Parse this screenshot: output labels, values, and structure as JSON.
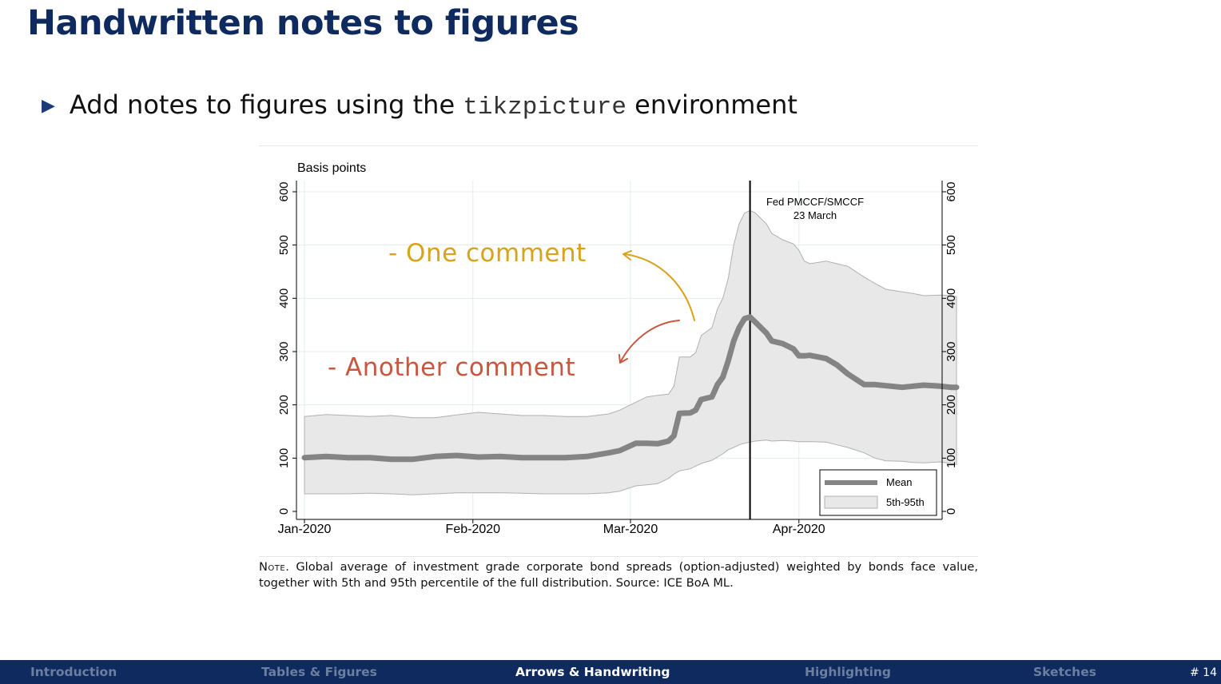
{
  "slide": {
    "title": "Handwritten notes to figures",
    "bullet_prefix": "Add notes to figures using the",
    "bullet_code": "tikzpicture",
    "bullet_suffix": "environment"
  },
  "figure": {
    "ytitle": "Basis points",
    "annotation_line1": "Fed PMCCF/SMCCF",
    "annotation_line2": "23 March",
    "handwritten_1": "- One comment",
    "handwritten_2": "- Another comment",
    "colors": {
      "mean": "#848484",
      "band_fill": "#e8e8e8",
      "band_edge": "#b0b0b0",
      "note_1": "#d6a31a",
      "note_2": "#c8573f",
      "vline": "#000000"
    }
  },
  "chart_data": {
    "type": "area",
    "ylabel": "Basis points",
    "ylim": [
      0,
      600
    ],
    "yticks": [
      0,
      100,
      200,
      300,
      400,
      500,
      600
    ],
    "xticks": [
      {
        "label": "Jan-2020",
        "day": 1
      },
      {
        "label": "Feb-2020",
        "day": 32
      },
      {
        "label": "Mar-2020",
        "day": 61
      },
      {
        "label": "Apr-2020",
        "day": 92
      }
    ],
    "vline": {
      "day": 83,
      "label": "Fed PMCCF/SMCCF 23 March"
    },
    "legend": [
      {
        "name": "Mean",
        "style": "line"
      },
      {
        "name": "5th-95th",
        "style": "band"
      }
    ],
    "legend_position": "bottom-right",
    "series": [
      {
        "name": "Mean",
        "x": [
          "2020-01-01",
          "2020-01-05",
          "2020-01-09",
          "2020-01-13",
          "2020-01-17",
          "2020-01-21",
          "2020-01-25",
          "2020-01-29",
          "2020-02-02",
          "2020-02-06",
          "2020-02-10",
          "2020-02-14",
          "2020-02-18",
          "2020-02-22",
          "2020-02-26",
          "2020-02-28",
          "2020-03-02",
          "2020-03-04",
          "2020-03-06",
          "2020-03-08",
          "2020-03-09",
          "2020-03-10",
          "2020-03-12",
          "2020-03-13",
          "2020-03-14",
          "2020-03-16",
          "2020-03-17",
          "2020-03-18",
          "2020-03-19",
          "2020-03-20",
          "2020-03-21",
          "2020-03-22",
          "2020-03-23",
          "2020-03-24",
          "2020-03-26",
          "2020-03-27",
          "2020-03-29",
          "2020-03-31",
          "2020-04-01",
          "2020-04-02",
          "2020-04-03",
          "2020-04-06",
          "2020-04-08",
          "2020-04-10",
          "2020-04-13",
          "2020-04-15",
          "2020-04-17",
          "2020-04-20",
          "2020-04-22",
          "2020-04-24",
          "2020-04-27",
          "2020-04-29",
          "2020-04-30"
        ],
        "values": [
          101,
          103,
          101,
          101,
          98,
          98,
          103,
          105,
          102,
          103,
          101,
          101,
          101,
          103,
          110,
          114,
          128,
          128,
          127,
          132,
          142,
          184,
          185,
          190,
          210,
          215,
          238,
          252,
          283,
          320,
          345,
          362,
          365,
          355,
          335,
          320,
          315,
          305,
          292,
          292,
          293,
          287,
          275,
          258,
          238,
          238,
          236,
          233,
          235,
          237,
          235,
          233,
          233
        ]
      },
      {
        "name": "5th-95th",
        "x": [
          "2020-01-01",
          "2020-01-05",
          "2020-01-09",
          "2020-01-13",
          "2020-01-17",
          "2020-01-21",
          "2020-01-25",
          "2020-01-29",
          "2020-02-02",
          "2020-02-06",
          "2020-02-10",
          "2020-02-14",
          "2020-02-18",
          "2020-02-22",
          "2020-02-26",
          "2020-02-28",
          "2020-03-02",
          "2020-03-04",
          "2020-03-06",
          "2020-03-08",
          "2020-03-09",
          "2020-03-10",
          "2020-03-12",
          "2020-03-13",
          "2020-03-14",
          "2020-03-16",
          "2020-03-17",
          "2020-03-18",
          "2020-03-19",
          "2020-03-20",
          "2020-03-21",
          "2020-03-22",
          "2020-03-23",
          "2020-03-24",
          "2020-03-26",
          "2020-03-27",
          "2020-03-29",
          "2020-03-31",
          "2020-04-01",
          "2020-04-02",
          "2020-04-03",
          "2020-04-06",
          "2020-04-08",
          "2020-04-10",
          "2020-04-13",
          "2020-04-15",
          "2020-04-17",
          "2020-04-20",
          "2020-04-22",
          "2020-04-24",
          "2020-04-27",
          "2020-04-29",
          "2020-04-30"
        ],
        "lower": [
          33,
          33,
          33,
          34,
          33,
          31,
          33,
          35,
          35,
          35,
          34,
          33,
          33,
          33,
          35,
          38,
          48,
          50,
          52,
          62,
          70,
          76,
          80,
          85,
          90,
          96,
          102,
          108,
          116,
          120,
          125,
          128,
          130,
          132,
          134,
          132,
          133,
          132,
          131,
          131,
          131,
          130,
          125,
          120,
          110,
          100,
          95,
          94,
          92,
          91,
          93,
          90,
          88
        ],
        "upper": [
          178,
          182,
          180,
          178,
          180,
          176,
          176,
          181,
          186,
          183,
          180,
          180,
          178,
          178,
          183,
          190,
          205,
          215,
          218,
          220,
          235,
          290,
          290,
          298,
          330,
          345,
          380,
          400,
          438,
          500,
          540,
          560,
          565,
          560,
          540,
          522,
          510,
          502,
          490,
          470,
          465,
          470,
          465,
          460,
          440,
          428,
          417,
          412,
          409,
          405,
          406,
          405,
          403
        ]
      }
    ]
  },
  "note": {
    "label": "Note.",
    "text": "Global average of investment grade corporate bond spreads (option-adjusted) weighted by bonds face value, together with 5th and 95th percentile of the full distribution. Source: ICE BoA ML."
  },
  "footer": {
    "items": [
      "Introduction",
      "Tables & Figures",
      "Arrows & Handwriting",
      "Highlighting",
      "Sketches"
    ],
    "page": "# 14"
  }
}
